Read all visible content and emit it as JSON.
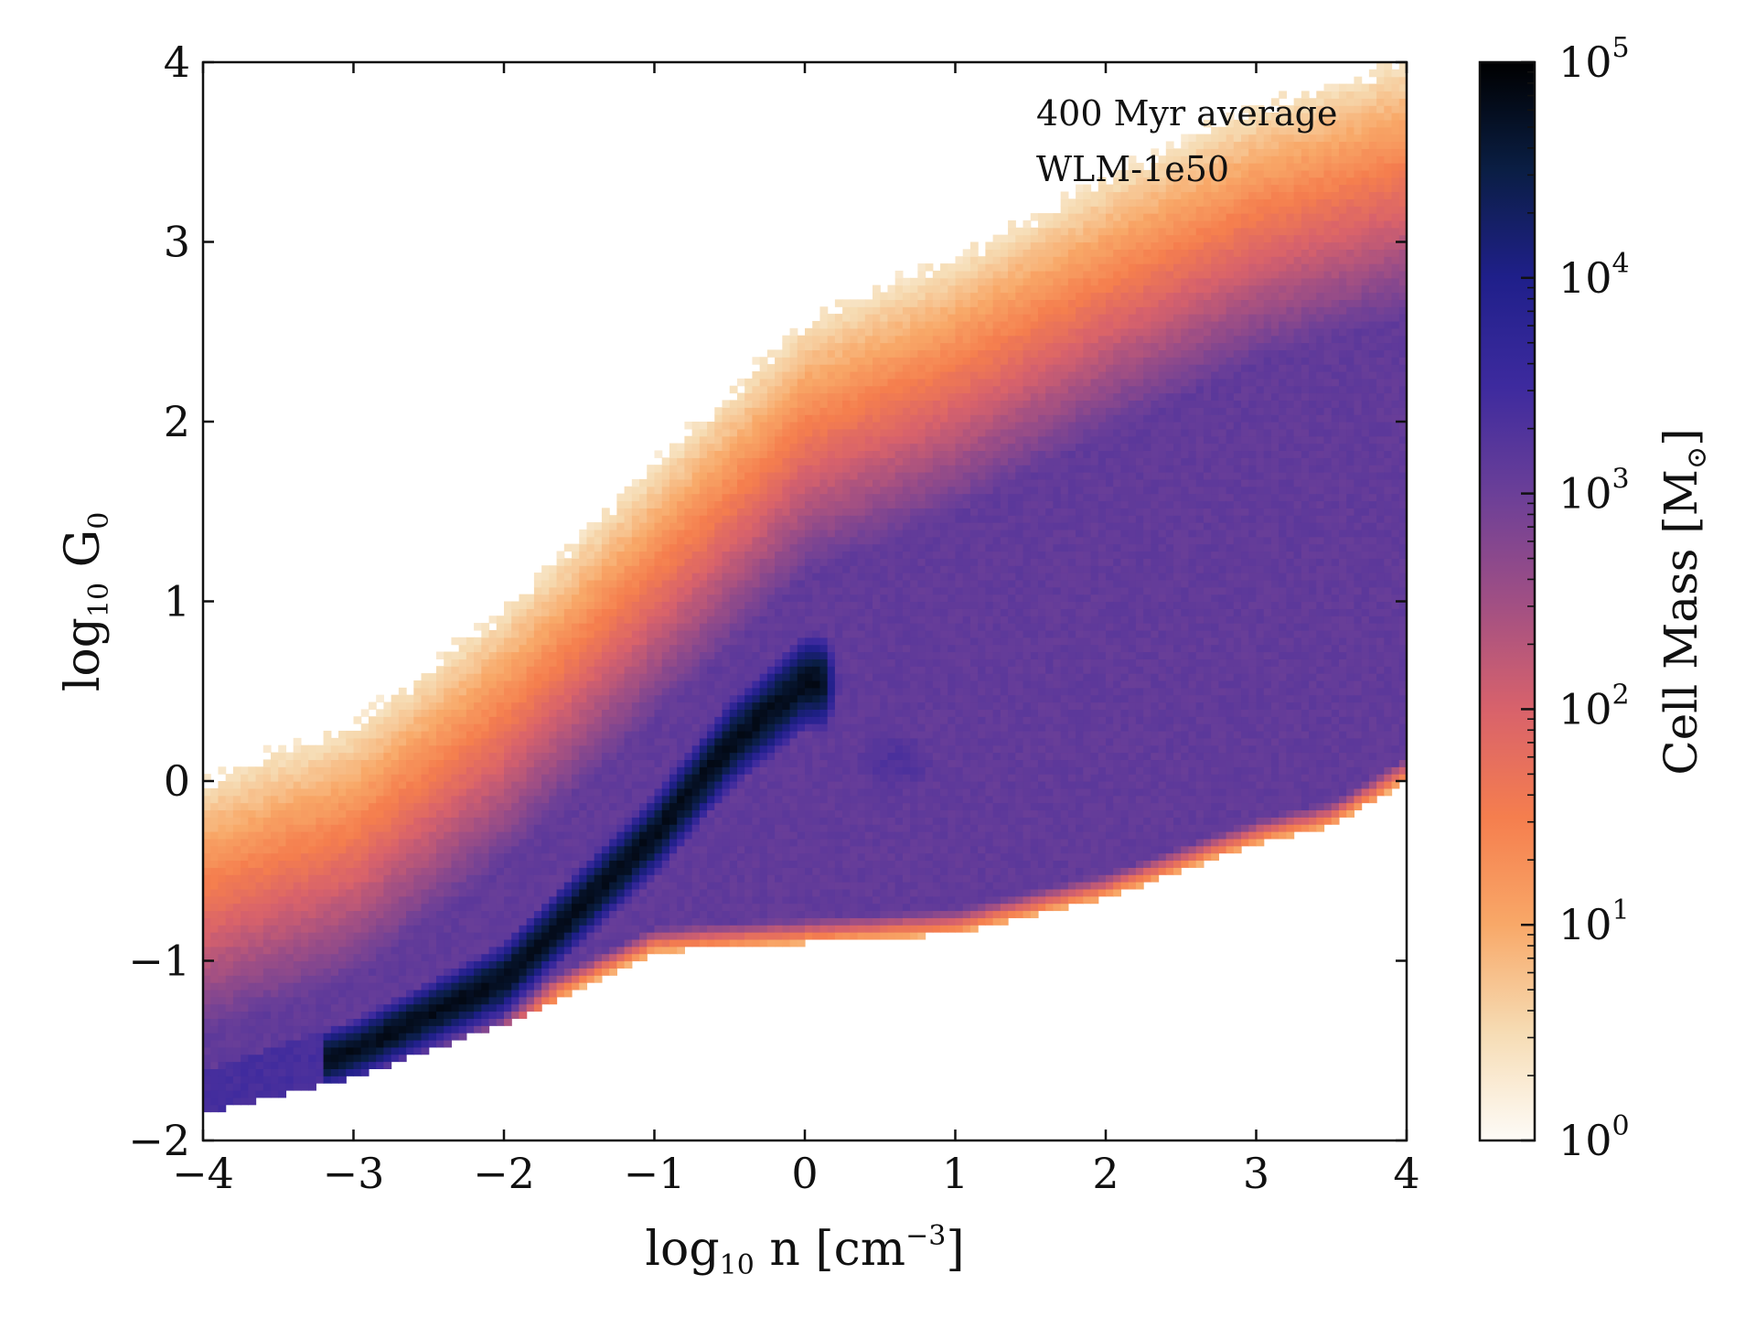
{
  "chart_data": {
    "type": "heatmap",
    "title": "",
    "xlabel": "log₁₀ n [cm⁻³]",
    "xlabel_parts": {
      "prefix": "log",
      "sub": "10",
      "mid": " n [cm",
      "sup": "−3",
      "suffix": "]"
    },
    "ylabel": "log₁₀ G₀",
    "ylabel_parts": {
      "prefix": "log",
      "sub": "10",
      "mid": " G",
      "sub2": "0"
    },
    "xlim": [
      -4,
      4
    ],
    "ylim": [
      -2,
      4
    ],
    "xticks": [
      -4,
      -3,
      -2,
      -1,
      0,
      1,
      2,
      3,
      4
    ],
    "xtick_labels": [
      "−4",
      "−3",
      "−2",
      "−1",
      "0",
      "1",
      "2",
      "3",
      "4"
    ],
    "yticks": [
      -2,
      -1,
      0,
      1,
      2,
      3,
      4
    ],
    "ytick_labels": [
      "−2",
      "−1",
      "0",
      "1",
      "2",
      "3",
      "4"
    ],
    "annotations": [
      "400 Myr average",
      "WLM-1e50"
    ],
    "colorbar": {
      "label": "Cell Mass [M⊙]",
      "label_text": "Cell Mass [M",
      "label_symbol": "⊙",
      "label_end": "]",
      "scale": "log",
      "range": [
        1,
        100000
      ],
      "ticks": [
        {
          "value": 1,
          "base": "10",
          "exp": "0"
        },
        {
          "value": 10,
          "base": "10",
          "exp": "1"
        },
        {
          "value": 100,
          "base": "10",
          "exp": "2"
        },
        {
          "value": 1000,
          "base": "10",
          "exp": "3"
        },
        {
          "value": 10000,
          "base": "10",
          "exp": "4"
        },
        {
          "value": 100000,
          "base": "10",
          "exp": "5"
        }
      ],
      "colormap": [
        "#fdfbf7",
        "#f6dcb4",
        "#f8a868",
        "#f57e4e",
        "#d8626b",
        "#a04f84",
        "#6b3f98",
        "#3d2a9e",
        "#1f1f8a",
        "#0a1e44",
        "#000000"
      ]
    },
    "grid": false,
    "density_description_values": {
      "ridge": [
        {
          "x": -4.0,
          "y": -1.75
        },
        {
          "x": -3.0,
          "y": -1.5
        },
        {
          "x": -2.0,
          "y": -1.1
        },
        {
          "x": -1.0,
          "y": -0.3
        },
        {
          "x": -0.5,
          "y": 0.2
        },
        {
          "x": 0.0,
          "y": 0.55
        }
      ],
      "upper_edge": [
        {
          "x": -4.0,
          "y": 0.0
        },
        {
          "x": -3.0,
          "y": 0.3
        },
        {
          "x": -2.0,
          "y": 0.95
        },
        {
          "x": -1.0,
          "y": 1.75
        },
        {
          "x": 0.0,
          "y": 2.55
        },
        {
          "x": 1.0,
          "y": 2.9
        },
        {
          "x": 2.0,
          "y": 3.35
        },
        {
          "x": 3.0,
          "y": 3.75
        },
        {
          "x": 4.0,
          "y": 4.0
        }
      ],
      "lower_edge": [
        {
          "x": -4.0,
          "y": -1.85
        },
        {
          "x": -3.0,
          "y": -1.65
        },
        {
          "x": -2.0,
          "y": -1.35
        },
        {
          "x": -1.0,
          "y": -0.95
        },
        {
          "x": 0.0,
          "y": -0.9
        },
        {
          "x": 1.0,
          "y": -0.85
        },
        {
          "x": 2.0,
          "y": -0.65
        },
        {
          "x": 3.0,
          "y": -0.35
        },
        {
          "x": 3.5,
          "y": -0.25
        },
        {
          "x": 4.0,
          "y": 0.0
        }
      ],
      "peak_log10_mass": 5.0,
      "mid_log10_mass": 3.0
    }
  }
}
